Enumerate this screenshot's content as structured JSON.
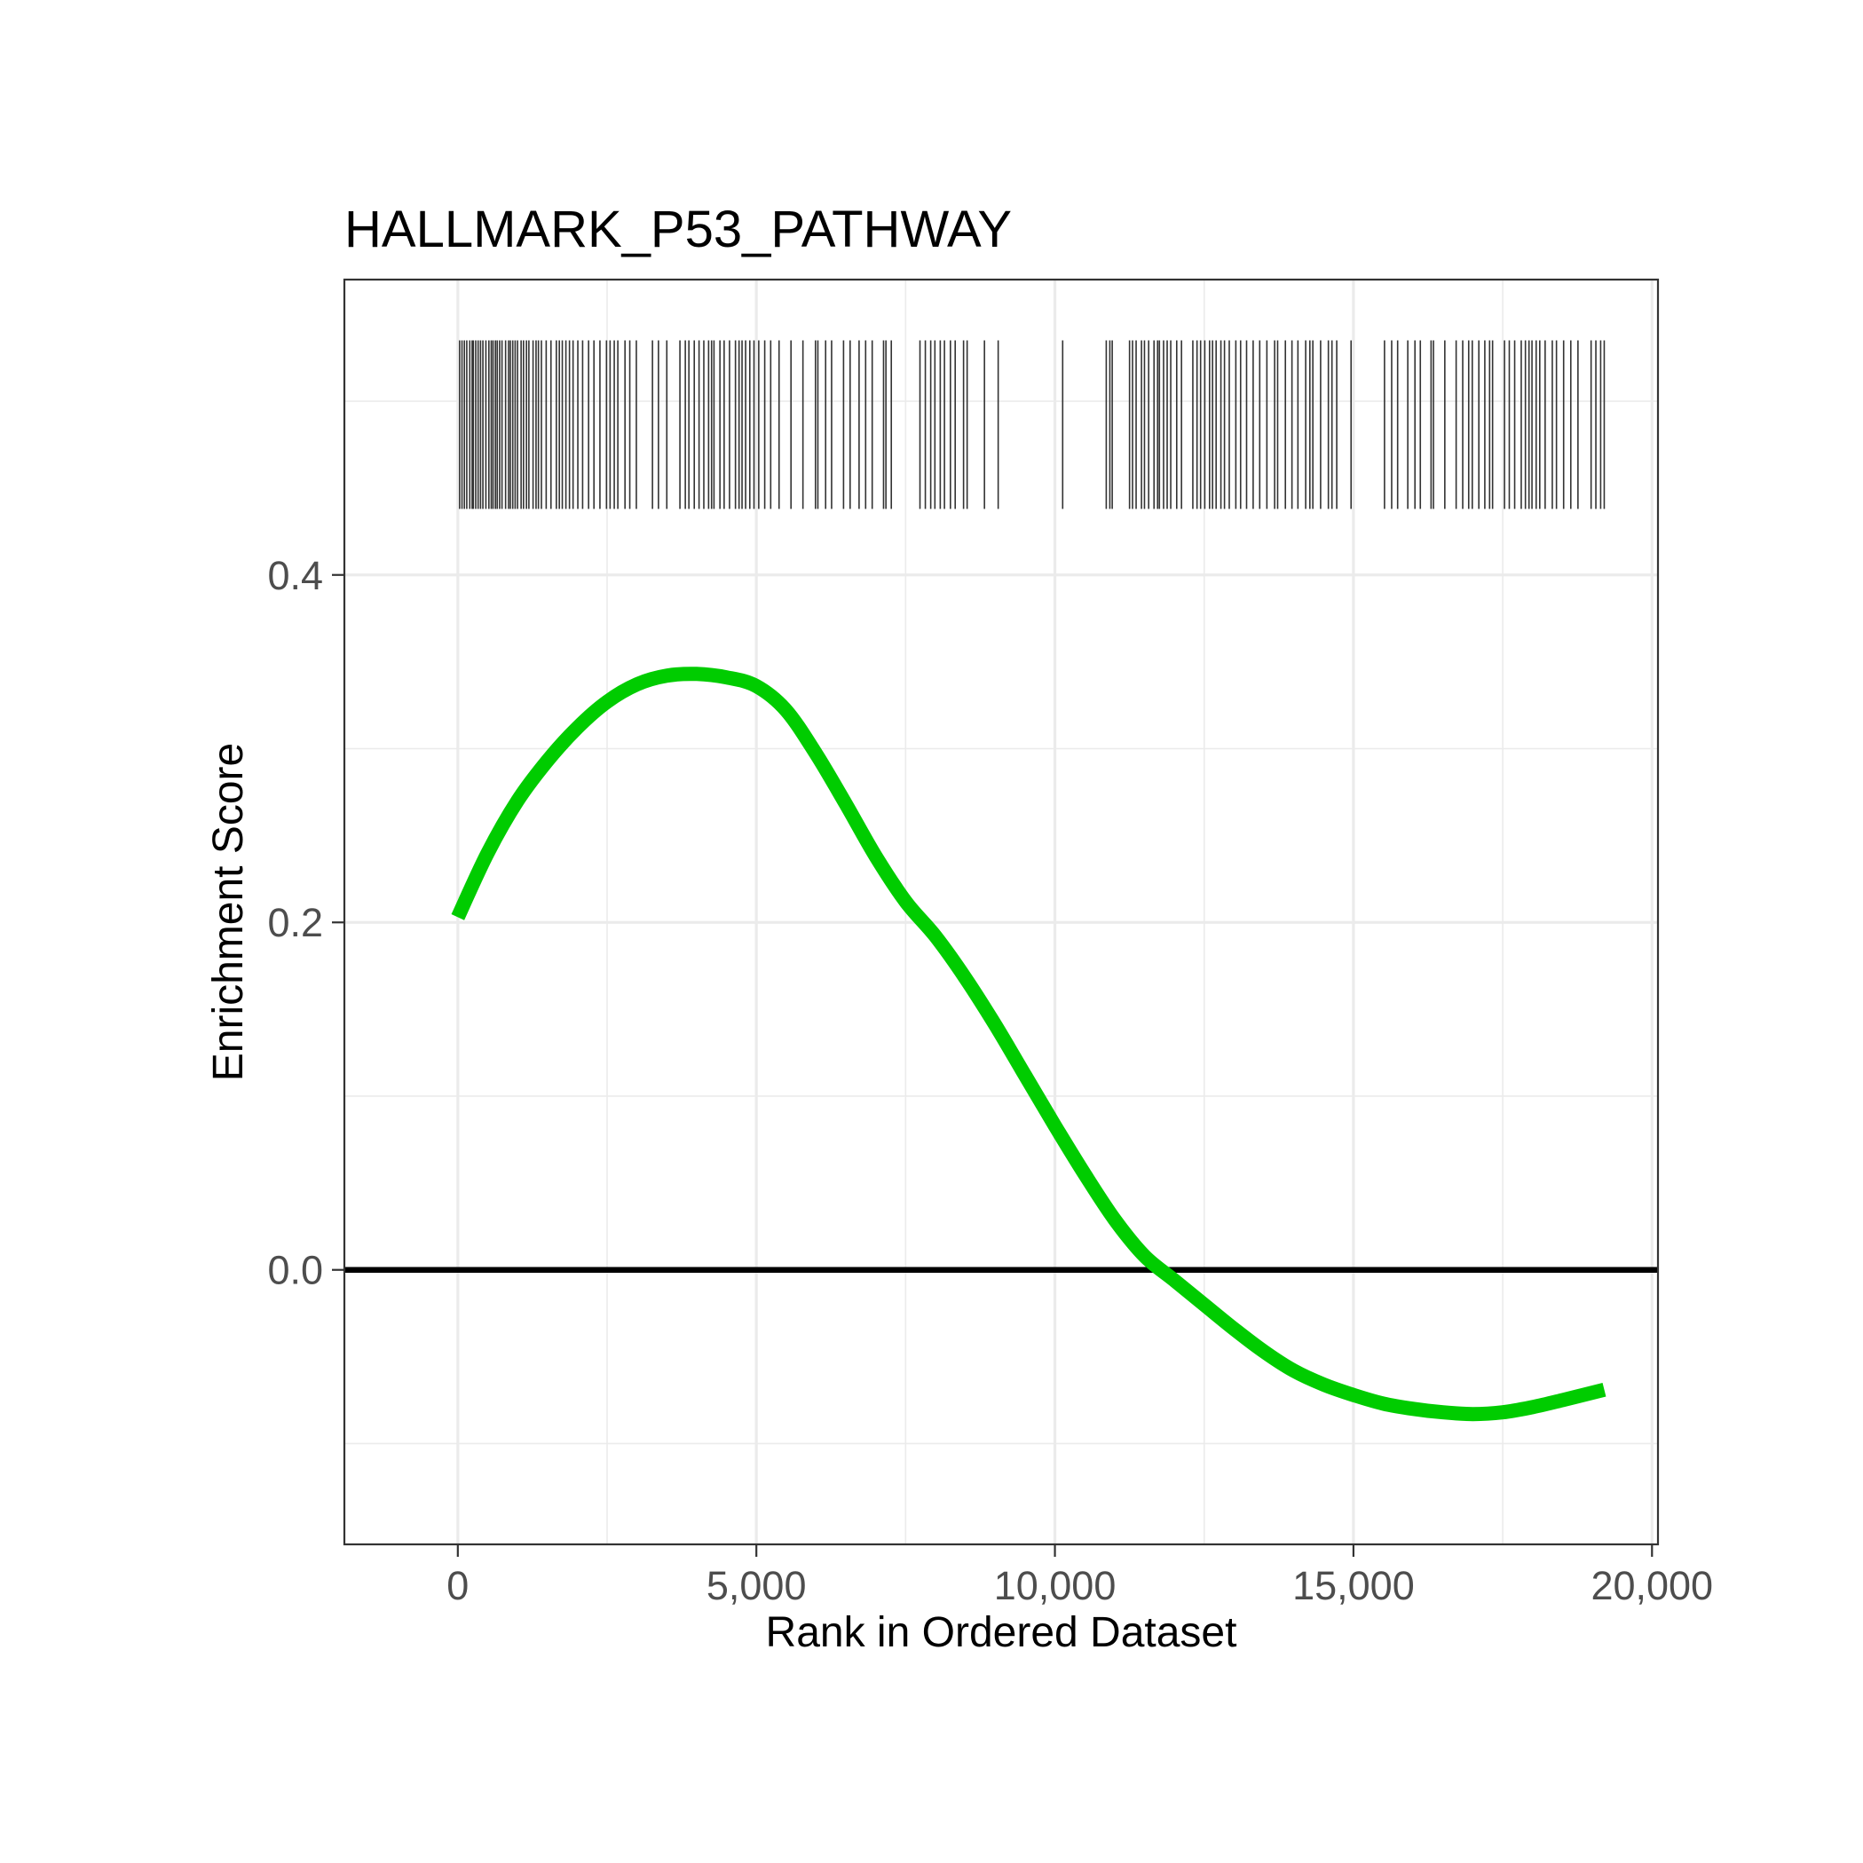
{
  "chart_data": {
    "type": "line",
    "title": "HALLMARK_P53_PATHWAY",
    "xlabel": "Rank in Ordered Dataset",
    "ylabel": "Enrichment Score",
    "xlim": [
      -1900,
      20100
    ],
    "ylim": [
      -0.158,
      0.57
    ],
    "x_ticks": [
      0,
      5000,
      10000,
      15000,
      20000
    ],
    "x_tick_labels": [
      "0",
      "5,000",
      "10,000",
      "15,000",
      "20,000"
    ],
    "y_ticks": [
      0.0,
      0.2,
      0.4
    ],
    "y_tick_labels": [
      "0.0",
      "0.2",
      "0.4"
    ],
    "grid": true,
    "zero_line": 0.0,
    "rug_range": [
      0.438,
      0.535
    ],
    "colors": {
      "curve": "#00cc00",
      "zero_line": "#000000",
      "rug": "#333333",
      "grid": "#ebebeb",
      "border": "#333333"
    },
    "series": [
      {
        "x": [
          0,
          500,
          1000,
          1500,
          2000,
          2500,
          3000,
          3500,
          4000,
          4500,
          5000,
          5500,
          6000,
          6500,
          7000,
          7500,
          8000,
          8500,
          9000,
          9500,
          10000,
          10500,
          11000,
          11500,
          12000,
          12500,
          13000,
          13500,
          14000,
          14500,
          15000,
          15500,
          16000,
          16500,
          17000,
          17500,
          18000,
          18500,
          19200
        ],
        "y": [
          0.203,
          0.24,
          0.27,
          0.293,
          0.312,
          0.327,
          0.337,
          0.342,
          0.343,
          0.341,
          0.336,
          0.322,
          0.297,
          0.268,
          0.238,
          0.212,
          0.192,
          0.168,
          0.141,
          0.112,
          0.083,
          0.055,
          0.029,
          0.008,
          -0.006,
          -0.02,
          -0.034,
          -0.047,
          -0.058,
          -0.066,
          -0.072,
          -0.077,
          -0.08,
          -0.082,
          -0.083,
          -0.082,
          -0.079,
          -0.075,
          -0.069
        ]
      }
    ],
    "rug_positions": [
      30,
      70,
      110,
      150,
      200,
      240,
      260,
      300,
      340,
      380,
      420,
      470,
      520,
      560,
      590,
      630,
      660,
      700,
      740,
      800,
      850,
      880,
      920,
      960,
      1000,
      1060,
      1100,
      1150,
      1190,
      1260,
      1310,
      1350,
      1400,
      1480,
      1560,
      1650,
      1700,
      1750,
      1810,
      1870,
      1930,
      2010,
      2090,
      2190,
      2280,
      2380,
      2490,
      2550,
      2620,
      2680,
      2800,
      2880,
      2990,
      3260,
      3360,
      3500,
      3720,
      3810,
      3870,
      3960,
      4040,
      4120,
      4200,
      4250,
      4290,
      4390,
      4460,
      4550,
      4650,
      4710,
      4760,
      4820,
      4890,
      4960,
      5040,
      5140,
      5240,
      5380,
      5580,
      5780,
      5990,
      6030,
      6160,
      6260,
      6460,
      6570,
      6720,
      6830,
      6940,
      7130,
      7170,
      7260,
      7740,
      7830,
      7920,
      7990,
      8080,
      8150,
      8250,
      8330,
      8470,
      8530,
      8820,
      9050,
      10130,
      10860,
      10920,
      10960,
      11250,
      11300,
      11360,
      11450,
      11500,
      11570,
      11660,
      11720,
      11750,
      11820,
      11880,
      11940,
      12040,
      12120,
      12310,
      12380,
      12440,
      12510,
      12590,
      12640,
      12700,
      12780,
      12840,
      12920,
      13030,
      13110,
      13210,
      13320,
      13430,
      13550,
      13680,
      13730,
      13860,
      13970,
      14070,
      14200,
      14270,
      14320,
      14450,
      14580,
      14640,
      14720,
      14960,
      15520,
      15640,
      15740,
      15910,
      16030,
      16120,
      16300,
      16340,
      16530,
      16720,
      16830,
      16930,
      16990,
      17100,
      17200,
      17280,
      17330,
      17530,
      17610,
      17700,
      17810,
      17880,
      17940,
      17990,
      18060,
      18120,
      18210,
      18330,
      18400,
      18520,
      18640,
      18760,
      18980,
      19060,
      19140,
      19200
    ]
  }
}
